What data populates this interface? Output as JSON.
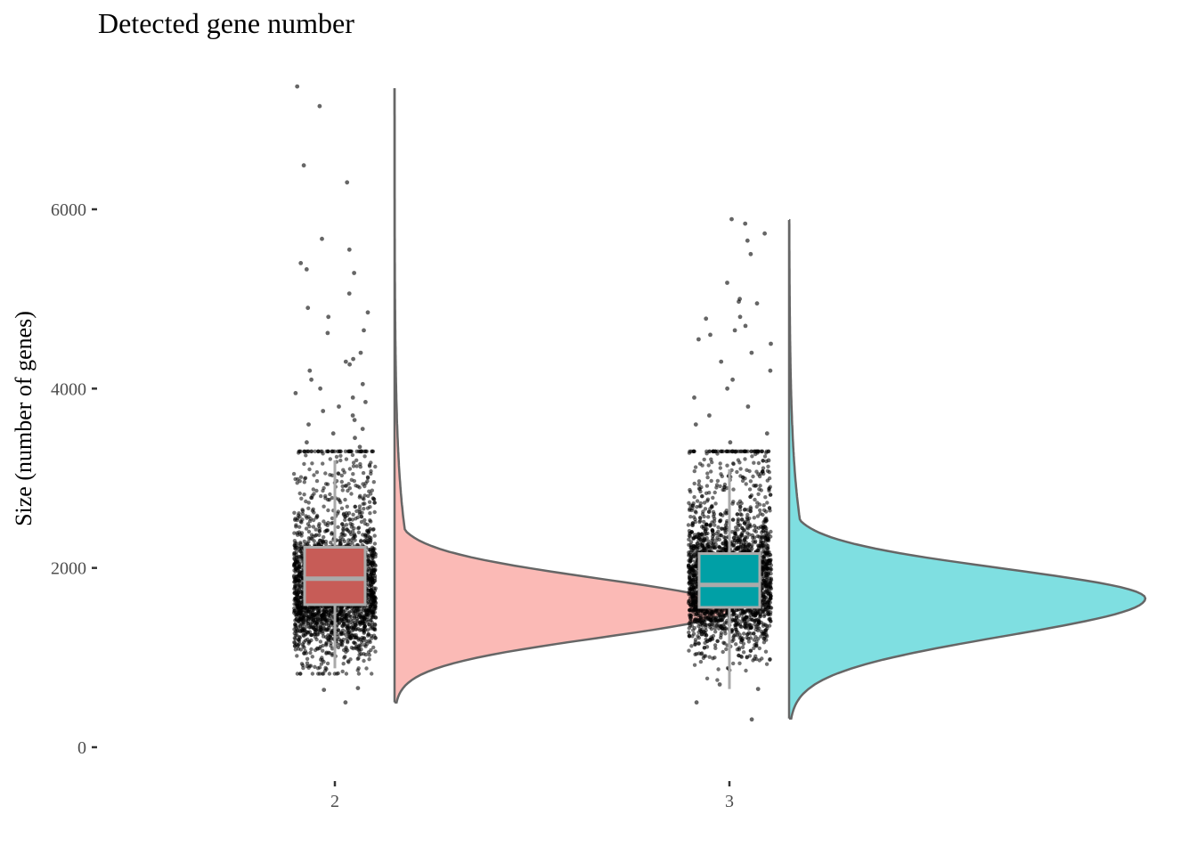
{
  "chart_data": {
    "type": "raincloud",
    "title": "Detected gene number",
    "xlabel": "",
    "ylabel": "Size (number of genes)",
    "ylim": [
      0,
      7450
    ],
    "y_ticks": [
      "0",
      "2000",
      "4000",
      "6000"
    ],
    "grid": false,
    "legend": "none",
    "categories": [
      "2",
      "3"
    ],
    "series": [
      {
        "category": "2",
        "fill_color": "#F8766D",
        "box_color": "#C75C57",
        "box": {
          "min": 880,
          "q1": 1590,
          "median": 1880,
          "q3": 2230,
          "max": 3200
        },
        "density_range": [
          500,
          7350
        ],
        "density_mode": 1550,
        "outliers": [
          7150,
          7370,
          6490,
          6300,
          5670,
          5550,
          5400,
          5330,
          5290,
          5060,
          4850,
          4800,
          4650,
          4620,
          4900,
          4400,
          4330,
          4300,
          4270,
          4200,
          4100,
          4050,
          4000,
          3950,
          3900,
          3850,
          3800,
          3750,
          3700,
          3650,
          3600,
          3550,
          3500,
          3450,
          3400,
          3350,
          3300,
          640,
          660,
          500
        ]
      },
      {
        "category": "3",
        "fill_color": "#00BFC4",
        "box_color": "#00A0A6",
        "box": {
          "min": 650,
          "q1": 1560,
          "median": 1810,
          "q3": 2160,
          "max": 3100
        },
        "density_range": [
          320,
          5880
        ],
        "density_mode": 1660,
        "outliers": [
          5890,
          5840,
          5730,
          5650,
          5500,
          5180,
          5000,
          4970,
          4950,
          4800,
          4780,
          4700,
          4650,
          4600,
          4550,
          4500,
          4400,
          4300,
          4200,
          4100,
          4000,
          3900,
          3800,
          3700,
          3600,
          3500,
          3400,
          3300,
          3200,
          700,
          650,
          500,
          310
        ]
      }
    ]
  }
}
